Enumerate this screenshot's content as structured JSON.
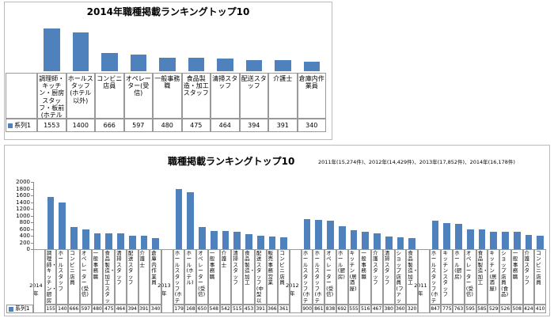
{
  "chart_data": [
    {
      "type": "bar",
      "title": "2014年職種掲載ランキングトップ10",
      "series_name": "系列1",
      "color": "#4f81bd",
      "categories": [
        "調理師・キッチン・厨房スタッフ・板前(ホテル以外)",
        "ホールスタッフ(ホテル以外)",
        "コンビニ店員",
        "オペレーター(受信)",
        "一般事務職",
        "食品製造・加工スタッフ",
        "清掃スタッフ",
        "配送スタッフ",
        "介護士",
        "倉庫内作業員"
      ],
      "values": [
        1553,
        1400,
        666,
        597,
        480,
        475,
        464,
        394,
        391,
        340
      ]
    },
    {
      "type": "grouped-bar",
      "title": "職種掲載ランキングトップ10",
      "subtitle": "2011年(15,274件)、2012年(14,429件)、2013年(17,852件)、2014年(16,178件)",
      "series_name": "系列1",
      "color": "#4f81bd",
      "ylim": [
        0,
        2000
      ],
      "yticks": [
        0,
        200,
        400,
        600,
        800,
        1000,
        1200,
        1400,
        1600,
        1800,
        2000
      ],
      "groups": [
        {
          "label": "2014年",
          "categories": [
            "調理師・キッチン・厨房スタッフ",
            "ホールスタッフ",
            "コンビニ店員",
            "オペレーター(受信)",
            "一般事務職",
            "食品製造・加工スタッフ",
            "清掃スタッフ",
            "配送スタッフ",
            "介護士",
            "倉庫内作業員"
          ],
          "values": [
            1553,
            1400,
            666,
            597,
            480,
            475,
            464,
            394,
            391,
            340
          ]
        },
        {
          "label": "2013年",
          "categories": [
            "ホールスタッフ(ホテル以外)",
            "ホール(ホテル)",
            "オペレーター(受信)",
            "一般事務職",
            "介護士",
            "清掃スタッフ",
            "食品製造・加工",
            "配送スタッフ(中型以下)",
            "販売事務営業",
            "コンビニ店員"
          ],
          "values": [
            1793,
            1685,
            650,
            548,
            542,
            515,
            453,
            391,
            366,
            361
          ]
        },
        {
          "label": "2012年",
          "categories": [
            "ホールスタッフ(ホテル)",
            "ホールスタッフ(ホテル以外)",
            "オペレーター(受信)",
            "ホール(厨房)",
            "キッチン(居酒屋)",
            "一般事務職",
            "介護スタッフ",
            "清掃スタッフ",
            "ショップ店員(ファッション)",
            "食品製造・加工"
          ],
          "values": [
            900,
            861,
            838,
            692,
            555,
            516,
            467,
            380,
            360,
            320
          ]
        },
        {
          "label": "2011年",
          "categories": [
            "ホールスタッフ(ホテル)",
            "キッチンスタッフ",
            "ホール(厨房)",
            "オペレーター(受信)",
            "食品製造・加工",
            "キッチン(居酒屋)",
            "ショップ店員(食品)",
            "一般事務職",
            "介護スタッフ",
            "コンビニ店員"
          ],
          "values": [
            847,
            775,
            763,
            595,
            585,
            529,
            526,
            508,
            424,
            410
          ]
        }
      ]
    }
  ]
}
